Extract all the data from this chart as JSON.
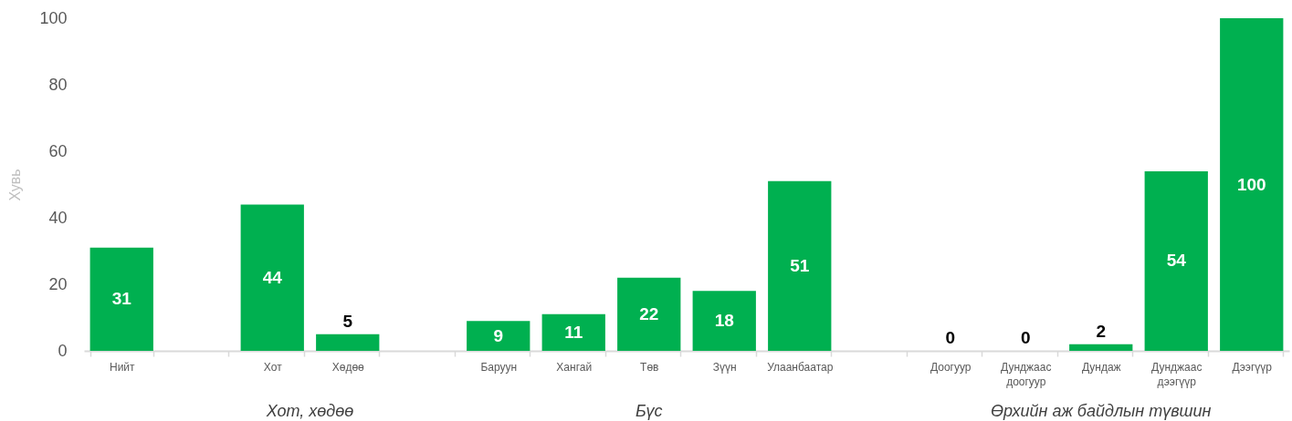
{
  "chart_data": {
    "type": "bar",
    "ylabel": "Хувь",
    "categories": [
      "Нийт",
      null,
      "Хот",
      "Хөдөө",
      null,
      "Баруун",
      "Хангай",
      "Төв",
      "Зүүн",
      "Улаанбаатар",
      null,
      "Доогуур",
      "Дунджаас доогуур",
      "Дундаж",
      "Дунджаас дээгүүр",
      "Дээгүүр"
    ],
    "values": [
      31,
      null,
      44,
      5,
      null,
      9,
      11,
      22,
      18,
      51,
      null,
      0,
      0,
      2,
      54,
      100
    ],
    "color": "#00b050",
    "ylim": [
      0,
      100
    ],
    "yticks": [
      0,
      20,
      40,
      60,
      80,
      100
    ],
    "data_labels": true,
    "grid": false,
    "annotations": [
      "Хот, хөдөө",
      "Бүс",
      "Өрхийн аж байдлын түвшин"
    ]
  }
}
